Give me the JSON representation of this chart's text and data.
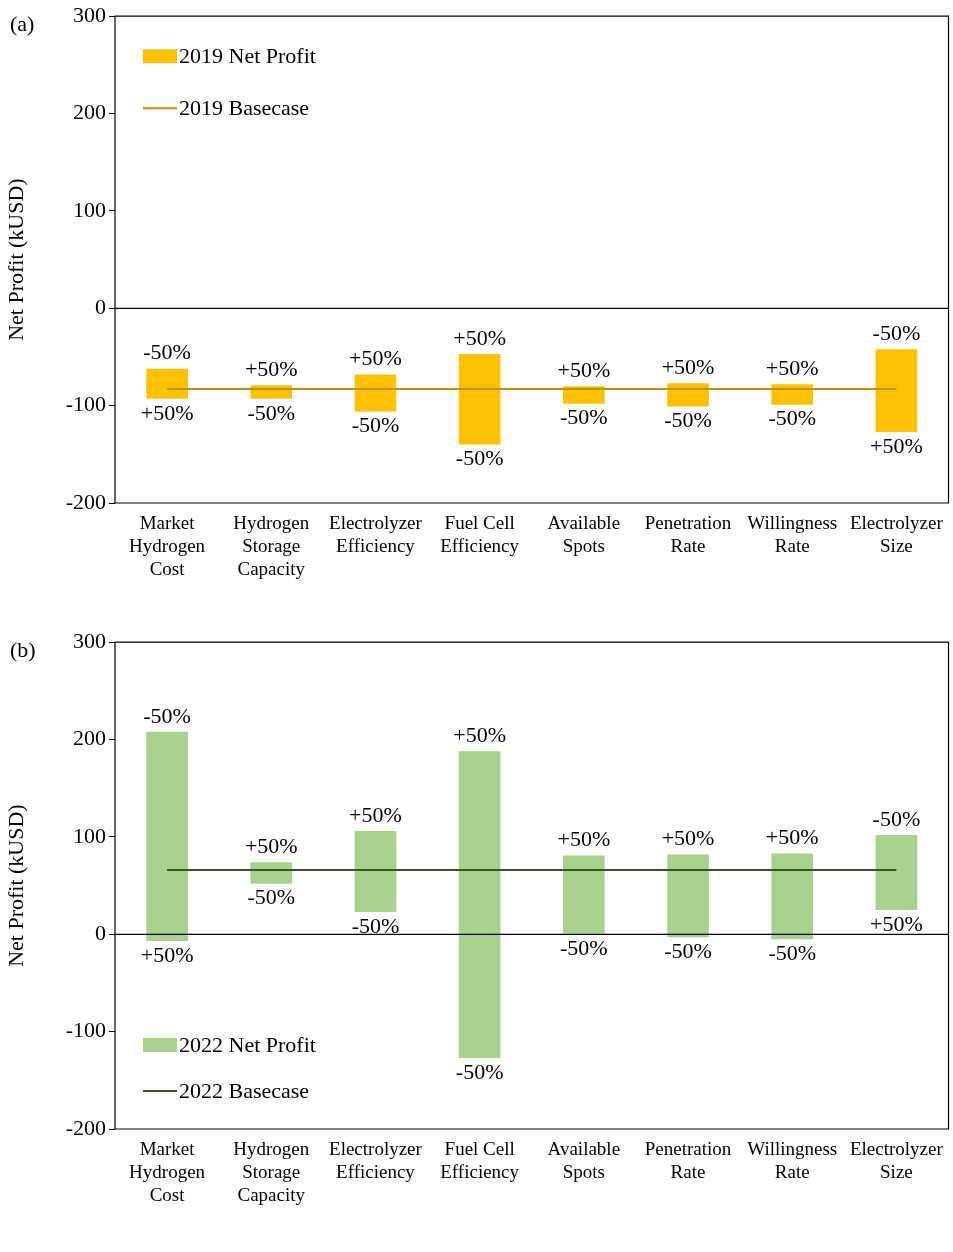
{
  "chart_data": [
    {
      "type": "bar",
      "title": "(a)",
      "ylabel": "Net Profit (kUSD)",
      "categories": [
        "Market Hydrogen Cost",
        "Hydrogen Storage Capacity",
        "Electrolyzer Efficiency",
        "Fuel Cell Efficiency",
        "Available Spots",
        "Penetration Rate",
        "Willingness Rate",
        "Electrolyzer Size"
      ],
      "series": [
        {
          "name": "2019 Net Profit",
          "color": "#ffc000",
          "base": [
            -93,
            -93,
            -106,
            -140,
            -98,
            -101,
            -99,
            -127
          ],
          "values": [
            31,
            14,
            38,
            93,
            18,
            24,
            21,
            85
          ]
        },
        {
          "name": "2019 Basecase",
          "type": "line",
          "color": "#bf9000",
          "values": [
            -83,
            -83,
            -83,
            -83,
            -83,
            -83,
            -83,
            -83
          ]
        }
      ],
      "ylim": [
        -200,
        300
      ],
      "yticks": [
        -200,
        -100,
        0,
        100,
        200,
        300
      ],
      "grid": false,
      "legend": "top left",
      "marker": "none",
      "line_style": "solid",
      "ref_lines": [
        {
          "axis": "y",
          "value": 0
        }
      ],
      "annotations": [
        {
          "text": "-50%",
          "x": "Market Hydrogen Cost",
          "y": -62
        },
        {
          "text": "+50%",
          "x": "Market Hydrogen Cost",
          "y": -93
        },
        {
          "text": "+50%",
          "x": "Hydrogen Storage Capacity",
          "y": -79
        },
        {
          "text": "-50%",
          "x": "Hydrogen Storage Capacity",
          "y": -93
        },
        {
          "text": "+50%",
          "x": "Electrolyzer Efficiency",
          "y": -68
        },
        {
          "text": "-50%",
          "x": "Electrolyzer Efficiency",
          "y": -106
        },
        {
          "text": "+50%",
          "x": "Fuel Cell Efficiency",
          "y": -47
        },
        {
          "text": "-50%",
          "x": "Fuel Cell Efficiency",
          "y": -140
        },
        {
          "text": "+50%",
          "x": "Available Spots",
          "y": -80
        },
        {
          "text": "-50%",
          "x": "Available Spots",
          "y": -98
        },
        {
          "text": "+50%",
          "x": "Penetration Rate",
          "y": -77
        },
        {
          "text": "-50%",
          "x": "Penetration Rate",
          "y": -101
        },
        {
          "text": "+50%",
          "x": "Willingness Rate",
          "y": -78
        },
        {
          "text": "-50%",
          "x": "Willingness Rate",
          "y": -99
        },
        {
          "text": "-50%",
          "x": "Electrolyzer Size",
          "y": -42
        },
        {
          "text": "+50%",
          "x": "Electrolyzer Size",
          "y": -127
        }
      ]
    },
    {
      "type": "bar",
      "title": "(b)",
      "ylabel": "Net Profit (kUSD)",
      "categories": [
        "Market Hydrogen Cost",
        "Hydrogen Storage Capacity",
        "Electrolyzer Efficiency",
        "Fuel Cell Efficiency",
        "Available Spots",
        "Penetration Rate",
        "Willingness Rate",
        "Electrolyzer Size"
      ],
      "series": [
        {
          "name": "2022 Net Profit",
          "color": "#a9d18e",
          "base": [
            -7,
            52,
            23,
            -127,
            0,
            -3,
            -5,
            25
          ],
          "values": [
            215,
            22,
            83,
            315,
            81,
            85,
            88,
            77
          ]
        },
        {
          "name": "2022 Basecase",
          "type": "line",
          "color": "#375623",
          "values": [
            66,
            66,
            66,
            66,
            66,
            66,
            66,
            66
          ]
        }
      ],
      "ylim": [
        -200,
        300
      ],
      "yticks": [
        -200,
        -100,
        0,
        100,
        200,
        300
      ],
      "grid": false,
      "legend": "bottom left",
      "marker": "none",
      "line_style": "solid",
      "ref_lines": [
        {
          "axis": "y",
          "value": 0
        }
      ],
      "annotations": [
        {
          "text": "-50%",
          "x": "Market Hydrogen Cost",
          "y": 208
        },
        {
          "text": "+50%",
          "x": "Market Hydrogen Cost",
          "y": -7
        },
        {
          "text": "+50%",
          "x": "Hydrogen Storage Capacity",
          "y": 74
        },
        {
          "text": "-50%",
          "x": "Hydrogen Storage Capacity",
          "y": 52
        },
        {
          "text": "+50%",
          "x": "Electrolyzer Efficiency",
          "y": 106
        },
        {
          "text": "-50%",
          "x": "Electrolyzer Efficiency",
          "y": 23
        },
        {
          "text": "+50%",
          "x": "Fuel Cell Efficiency",
          "y": 188
        },
        {
          "text": "-50%",
          "x": "Fuel Cell Efficiency",
          "y": -127
        },
        {
          "text": "+50%",
          "x": "Available Spots",
          "y": 81
        },
        {
          "text": "-50%",
          "x": "Available Spots",
          "y": 0
        },
        {
          "text": "+50%",
          "x": "Penetration Rate",
          "y": 82
        },
        {
          "text": "-50%",
          "x": "Penetration Rate",
          "y": -3
        },
        {
          "text": "+50%",
          "x": "Willingness Rate",
          "y": 83
        },
        {
          "text": "-50%",
          "x": "Willingness Rate",
          "y": -5
        },
        {
          "text": "-50%",
          "x": "Electrolyzer Size",
          "y": 102
        },
        {
          "text": "+50%",
          "x": "Electrolyzer Size",
          "y": 25
        }
      ]
    }
  ]
}
